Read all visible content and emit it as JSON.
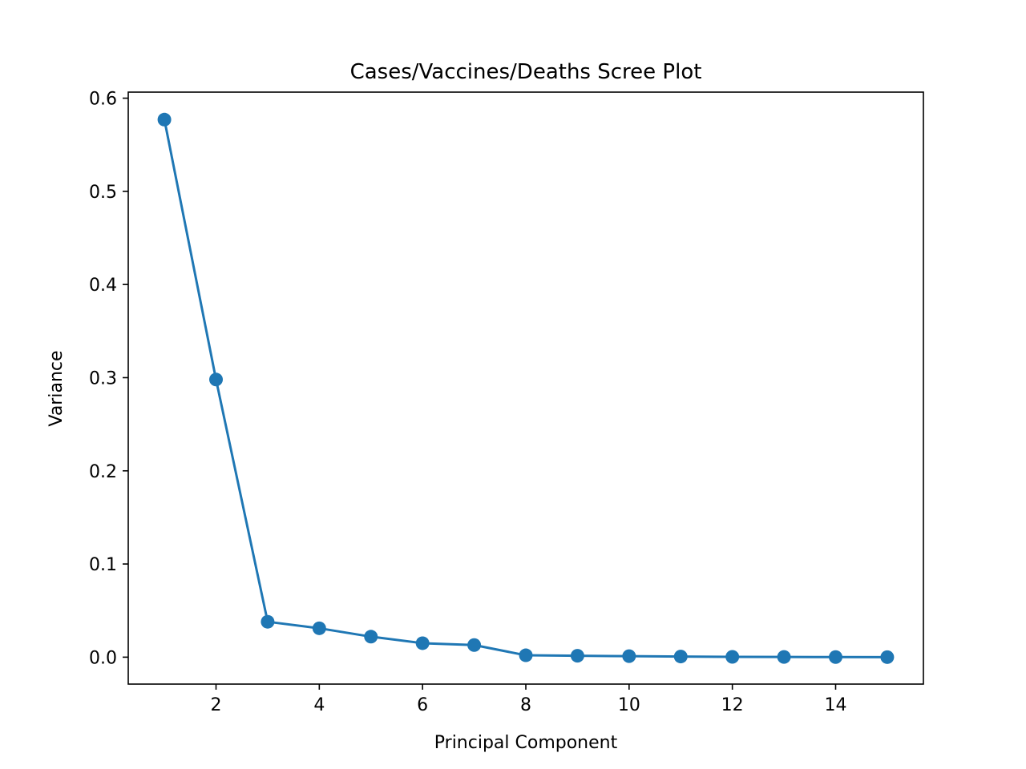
{
  "chart_data": {
    "type": "line",
    "title": "Cases/Vaccines/Deaths Scree Plot",
    "xlabel": "Principal Component",
    "ylabel": "Variance",
    "xlim": [
      0.3,
      15.7
    ],
    "ylim": [
      -0.0289,
      0.6065
    ],
    "x_ticks": [
      2,
      4,
      6,
      8,
      10,
      12,
      14
    ],
    "x_tick_labels": [
      "2",
      "4",
      "6",
      "8",
      "10",
      "12",
      "14"
    ],
    "y_ticks": [
      0.0,
      0.1,
      0.2,
      0.3,
      0.4,
      0.5,
      0.6
    ],
    "y_tick_labels": [
      "0.0",
      "0.1",
      "0.2",
      "0.3",
      "0.4",
      "0.5",
      "0.6"
    ],
    "grid": false,
    "marker": "circle",
    "series": [
      {
        "color": "#1f77b4",
        "x": [
          1,
          2,
          3,
          4,
          5,
          6,
          7,
          8,
          9,
          10,
          11,
          12,
          13,
          14,
          15
        ],
        "y": [
          0.577,
          0.298,
          0.038,
          0.031,
          0.022,
          0.015,
          0.013,
          0.002,
          0.0015,
          0.0011,
          0.0007,
          0.0003,
          0.0002,
          0.0001,
          5e-05
        ]
      }
    ]
  }
}
